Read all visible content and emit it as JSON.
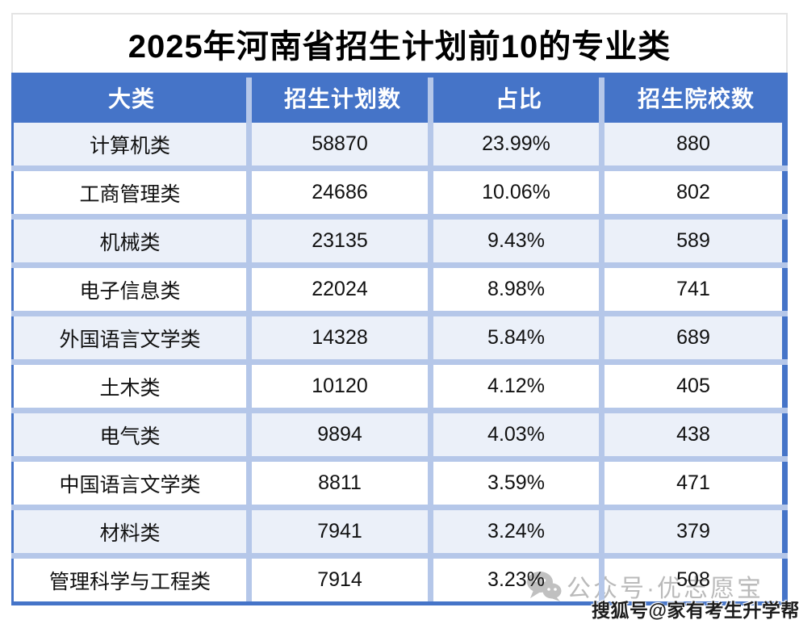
{
  "chart_data": {
    "type": "table",
    "title": "2025年河南省招生计划前10的专业类",
    "columns": [
      "大类",
      "招生计划数",
      "占比",
      "招生院校数"
    ],
    "rows": [
      [
        "计算机类",
        "58870",
        "23.99%",
        "880"
      ],
      [
        "工商管理类",
        "24686",
        "10.06%",
        "802"
      ],
      [
        "机械类",
        "23135",
        "9.43%",
        "589"
      ],
      [
        "电子信息类",
        "22024",
        "8.98%",
        "741"
      ],
      [
        "外国语言文学类",
        "14328",
        "5.84%",
        "689"
      ],
      [
        "土木类",
        "10120",
        "4.12%",
        "405"
      ],
      [
        "电气类",
        "9894",
        "4.03%",
        "438"
      ],
      [
        "中国语言文学类",
        "8811",
        "3.59%",
        "471"
      ],
      [
        "材料类",
        "7941",
        "3.24%",
        "379"
      ],
      [
        "管理科学与工程类",
        "7914",
        "3.23%",
        "508"
      ]
    ],
    "grid": "cell-borders",
    "legend_position": "none"
  },
  "watermarks": {
    "wechat_icon": "wechat-bubbles-icon",
    "wechat_label": "公众号·优志愿宝",
    "souhu_label": "搜狐号@家有考生升学帮"
  },
  "colors": {
    "header_bg": "#4574C8",
    "header_text": "#FFFFFF",
    "row_bg": "#FFFFFF",
    "row_alt_bg": "#EBF0F9",
    "grid_separator": "#B5C7E9",
    "outer_border": "#4574C8",
    "title_border": "#E4E4E4",
    "body_text": "#111111",
    "watermark_gray": "#909090"
  }
}
